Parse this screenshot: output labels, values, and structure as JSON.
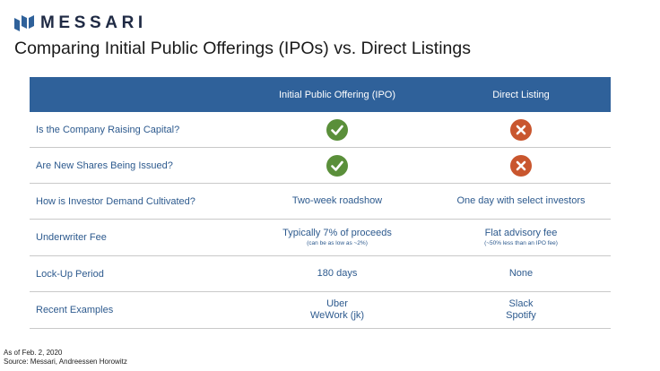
{
  "brand": {
    "name": "MESSARI",
    "accent_color": "#2f619a",
    "icon": "messari-logo-icon"
  },
  "title": "Comparing Initial Public Offerings (IPOs) vs. Direct Listings",
  "table": {
    "headers": [
      "",
      "Initial Public Offering (IPO)",
      "Direct Listing"
    ],
    "rows": [
      {
        "label": "Is the Company Raising Capital?",
        "ipo": {
          "icon": "check-icon",
          "color": "#5a8f3a"
        },
        "direct": {
          "icon": "x-icon",
          "color": "#c9562e"
        }
      },
      {
        "label": "Are New Shares Being Issued?",
        "ipo": {
          "icon": "check-icon",
          "color": "#5a8f3a"
        },
        "direct": {
          "icon": "x-icon",
          "color": "#c9562e"
        }
      },
      {
        "label": "How is Investor Demand Cultivated?",
        "ipo": {
          "text": "Two-week roadshow"
        },
        "direct": {
          "text": "One day with select investors"
        }
      },
      {
        "label": "Underwriter Fee",
        "ipo": {
          "text": "Typically 7% of proceeds",
          "note": "(can be as low as ~2%)"
        },
        "direct": {
          "text": "Flat advisory fee",
          "note": "(~50% less than an IPO fee)"
        }
      },
      {
        "label": "Lock-Up Period",
        "ipo": {
          "text": "180 days"
        },
        "direct": {
          "text": "None"
        }
      },
      {
        "label": "Recent Examples",
        "ipo": {
          "lines": [
            "Uber",
            "WeWork (jk)"
          ]
        },
        "direct": {
          "lines": [
            "Slack",
            "Spotify"
          ]
        }
      }
    ]
  },
  "footer": {
    "as_of": "As of Feb. 2, 2020",
    "source": "Source: Messari, Andreessen Horowitz"
  }
}
